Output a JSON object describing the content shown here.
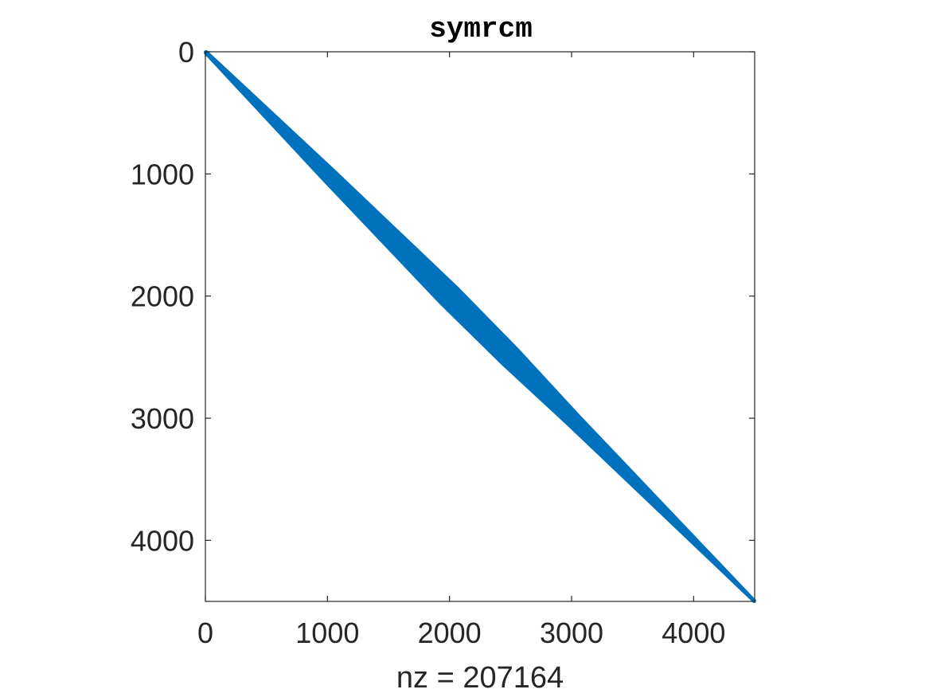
{
  "chart_data": {
    "type": "spy",
    "title": "symrcm",
    "xlabel": "nz = 207164",
    "ylabel": "",
    "xlim": [
      0,
      4500
    ],
    "ylim": [
      0,
      4500
    ],
    "y_reversed": true,
    "x_ticks": [
      0,
      1000,
      2000,
      3000,
      4000
    ],
    "y_ticks": [
      0,
      1000,
      2000,
      3000,
      4000
    ],
    "x_tick_labels": [
      "0",
      "1000",
      "2000",
      "3000",
      "4000"
    ],
    "y_tick_labels": [
      "0",
      "1000",
      "2000",
      "3000",
      "4000"
    ],
    "grid": false,
    "marker_color": "#0072bd",
    "band": {
      "from": [
        0,
        0
      ],
      "to": [
        4500,
        4500
      ],
      "half_bandwidth": [
        [
          0,
          10
        ],
        [
          1000,
          45
        ],
        [
          2000,
          70
        ],
        [
          2500,
          65
        ],
        [
          3000,
          45
        ],
        [
          4000,
          20
        ],
        [
          4500,
          8
        ]
      ]
    }
  }
}
